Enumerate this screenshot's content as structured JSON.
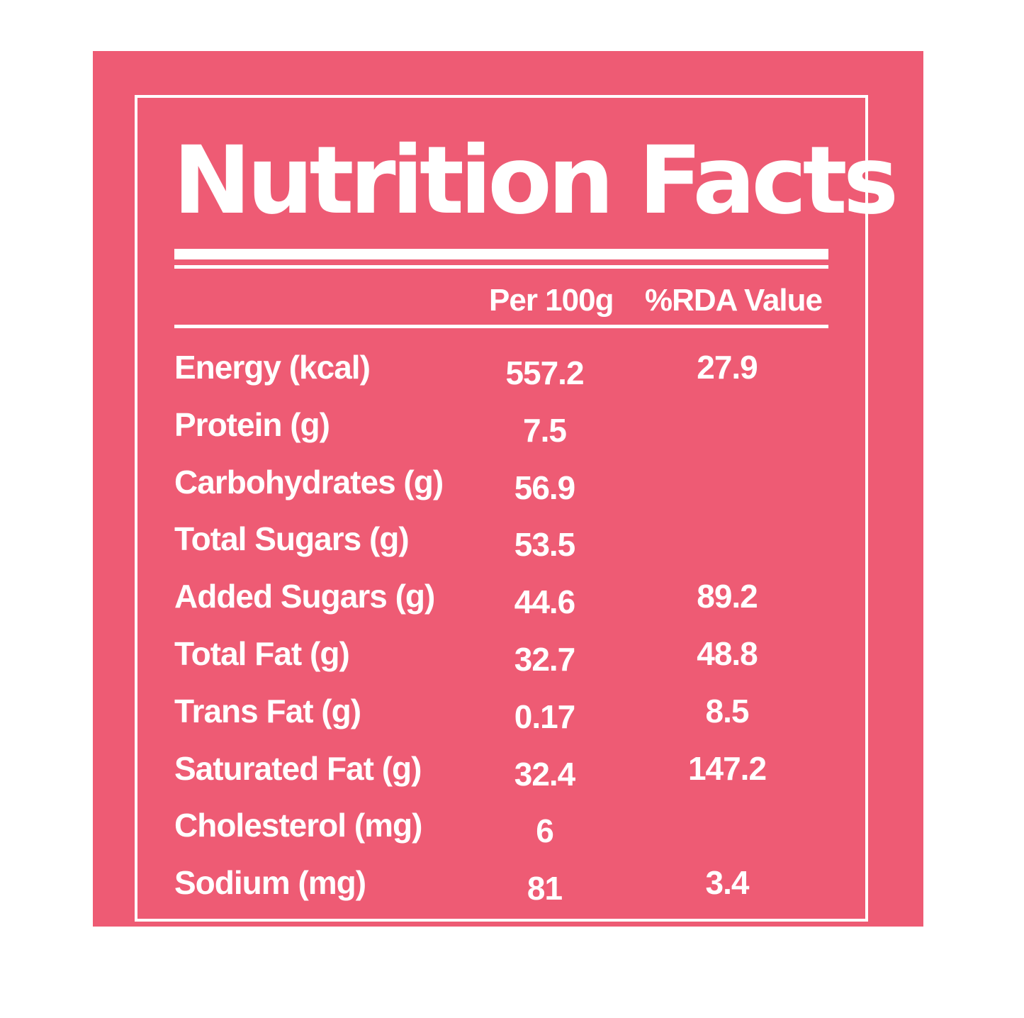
{
  "colors": {
    "background": "#ee5b74",
    "text": "#ffffff"
  },
  "title": "Nutrition Facts",
  "columns": {
    "per": "Per 100g",
    "rda": "%RDA Value"
  },
  "rows": [
    {
      "label": "Energy (kcal)",
      "per": "557.2",
      "rda": "27.9"
    },
    {
      "label": "Protein (g)",
      "per": "7.5",
      "rda": ""
    },
    {
      "label": "Carbohydrates (g)",
      "per": "56.9",
      "rda": ""
    },
    {
      "label": "Total Sugars (g)",
      "per": "53.5",
      "rda": ""
    },
    {
      "label": "Added Sugars (g)",
      "per": "44.6",
      "rda": "89.2"
    },
    {
      "label": "Total Fat (g)",
      "per": "32.7",
      "rda": "48.8"
    },
    {
      "label": "Trans Fat (g)",
      "per": "0.17",
      "rda": "8.5"
    },
    {
      "label": "Saturated Fat (g)",
      "per": "32.4",
      "rda": "147.2"
    },
    {
      "label": "Cholesterol (mg)",
      "per": "6",
      "rda": ""
    },
    {
      "label": "Sodium (mg)",
      "per": "81",
      "rda": "3.4"
    }
  ]
}
